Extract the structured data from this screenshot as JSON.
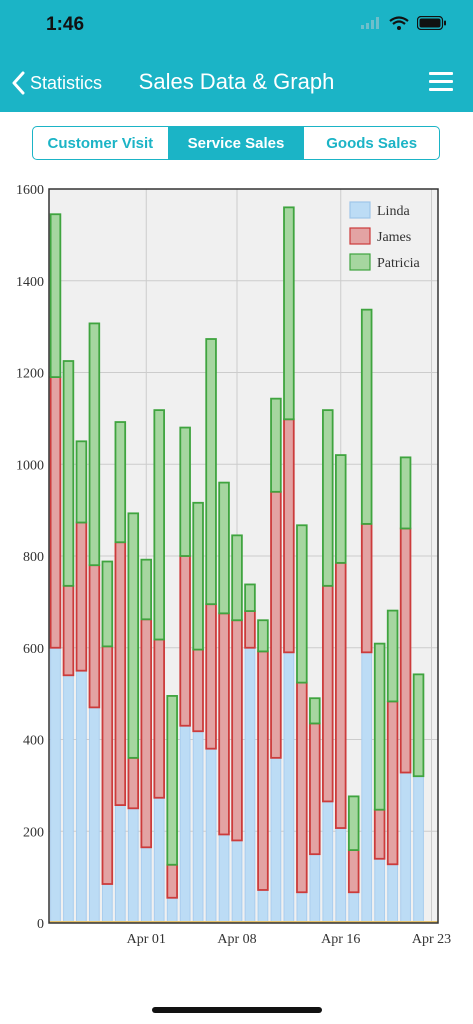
{
  "status": {
    "time": "1:46"
  },
  "nav": {
    "back_label": "Statistics",
    "title": "Sales Data & Graph"
  },
  "tabs": [
    {
      "label": "Customer Visit",
      "active": false
    },
    {
      "label": "Service Sales",
      "active": true
    },
    {
      "label": "Goods Sales",
      "active": false
    }
  ],
  "colors": {
    "accent": "#1bb4c6",
    "linda_fill": "#bcdcf5",
    "linda_stroke": "#a9cdee",
    "james_fill": "#e3a3a3",
    "james_stroke": "#cc3b3b",
    "patricia_fill": "#a6d6a0",
    "patricia_stroke": "#3fa43f"
  },
  "chart_data": {
    "type": "bar",
    "stacked": true,
    "ylim": [
      0,
      1600
    ],
    "yticks": [
      0,
      200,
      400,
      600,
      800,
      1000,
      1200,
      1400,
      1600
    ],
    "xticks": [
      "Apr 01",
      "Apr 08",
      "Apr 16",
      "Apr 23"
    ],
    "x": [
      "Mar 25",
      "Mar 26",
      "Mar 27",
      "Mar 28",
      "Mar 29",
      "Mar 30",
      "Mar 31",
      "Apr 01",
      "Apr 02",
      "Apr 03",
      "Apr 04",
      "Apr 05",
      "Apr 06",
      "Apr 07",
      "Apr 08",
      "Apr 09",
      "Apr 10",
      "Apr 11",
      "Apr 12",
      "Apr 13",
      "Apr 14",
      "Apr 15",
      "Apr 16",
      "Apr 17",
      "Apr 18",
      "Apr 19",
      "Apr 20",
      "Apr 21",
      "Apr 22",
      "Apr 23"
    ],
    "legend_position": "top-right",
    "grid": true,
    "series": [
      {
        "name": "Linda",
        "values": [
          600,
          540,
          550,
          470,
          85,
          257,
          250,
          165,
          273,
          55,
          430,
          418,
          380,
          193,
          180,
          600,
          72,
          360,
          590,
          67,
          150,
          265,
          207,
          67,
          590,
          140,
          128,
          328,
          320,
          0
        ]
      },
      {
        "name": "James",
        "values": [
          590,
          195,
          323,
          310,
          518,
          573,
          110,
          497,
          345,
          72,
          370,
          178,
          315,
          482,
          480,
          80,
          520,
          580,
          508,
          457,
          285,
          470,
          578,
          92,
          280,
          107,
          355,
          532,
          0,
          0
        ]
      },
      {
        "name": "Patricia",
        "values": [
          355,
          490,
          177,
          527,
          185,
          262,
          533,
          130,
          500,
          368,
          280,
          320,
          578,
          285,
          185,
          58,
          68,
          203,
          462,
          343,
          55,
          383,
          235,
          117,
          467,
          362,
          198,
          155,
          222,
          0
        ]
      }
    ]
  }
}
